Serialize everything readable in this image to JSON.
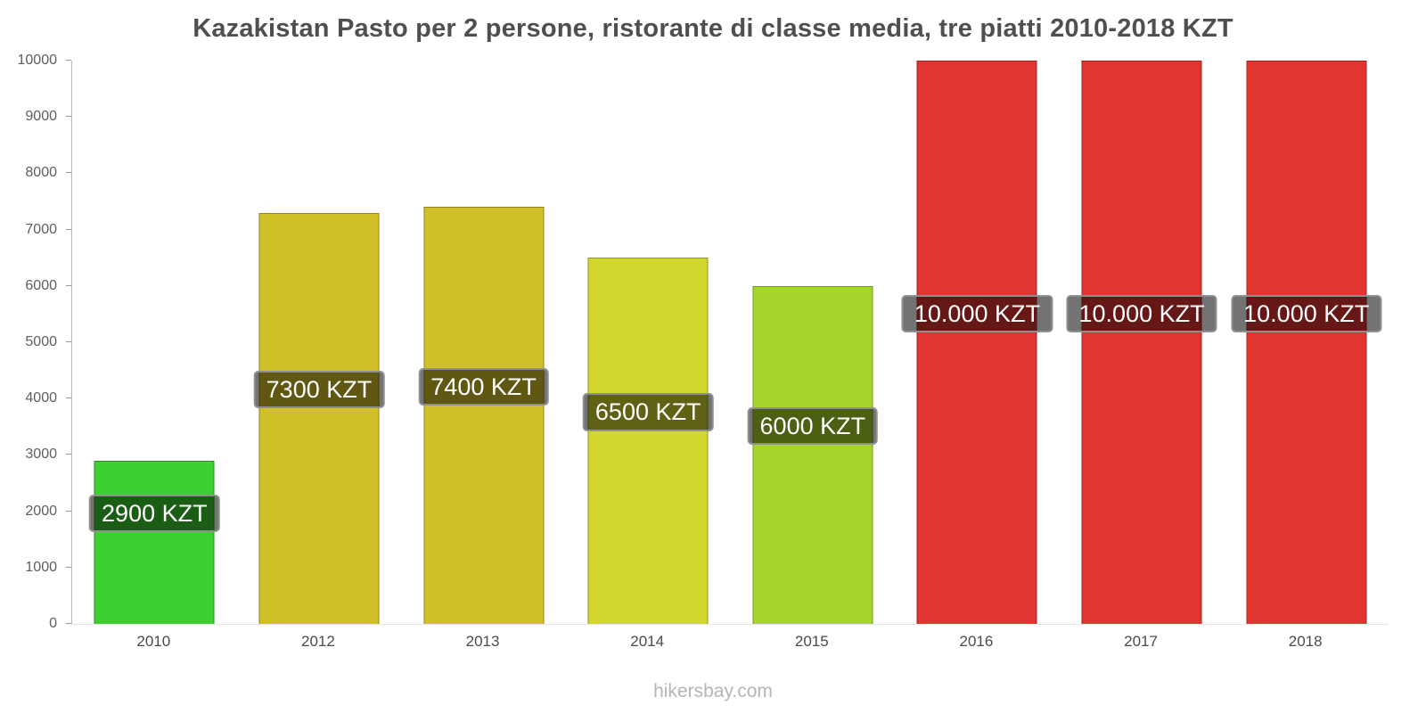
{
  "title": "Kazakistan Pasto per 2 persone, ristorante di classe media, tre piatti 2010-2018 KZT",
  "footer": "hikersbay.com",
  "chart_data": {
    "type": "bar",
    "title": "Kazakistan Pasto per 2 persone, ristorante di classe media, tre piatti 2010-2018 KZT",
    "categories": [
      "2010",
      "2012",
      "2013",
      "2014",
      "2015",
      "2016",
      "2017",
      "2018"
    ],
    "values": [
      2900,
      7300,
      7400,
      6500,
      6000,
      10000,
      10000,
      10000
    ],
    "bar_labels": [
      "2900 KZT",
      "7300 KZT",
      "7400 KZT",
      "6500 KZT",
      "6000 KZT",
      "10.000 KZT",
      "10.000 KZT",
      "10.000 KZT"
    ],
    "bar_colors": [
      "#3ecf30",
      "#d2c029",
      "#d2c029",
      "#d2d72d",
      "#a6d62c",
      "#e03531",
      "#e03531",
      "#e03531"
    ],
    "xlabel": "",
    "ylabel": "",
    "ylim": [
      0,
      10000
    ],
    "y_ticks": [
      0,
      1000,
      2000,
      3000,
      4000,
      5000,
      6000,
      7000,
      8000,
      9000,
      10000
    ],
    "y_tick_labels": [
      "0",
      "1000",
      "2000",
      "3000",
      "4000",
      "5000",
      "6000",
      "7000",
      "8000",
      "9000",
      "10000"
    ],
    "grid": false,
    "legend": false,
    "label_style": {
      "background": "rgba(0,0,0,0.55)",
      "border_color": "#8f8f8f",
      "text_color": "#ffffff"
    }
  }
}
